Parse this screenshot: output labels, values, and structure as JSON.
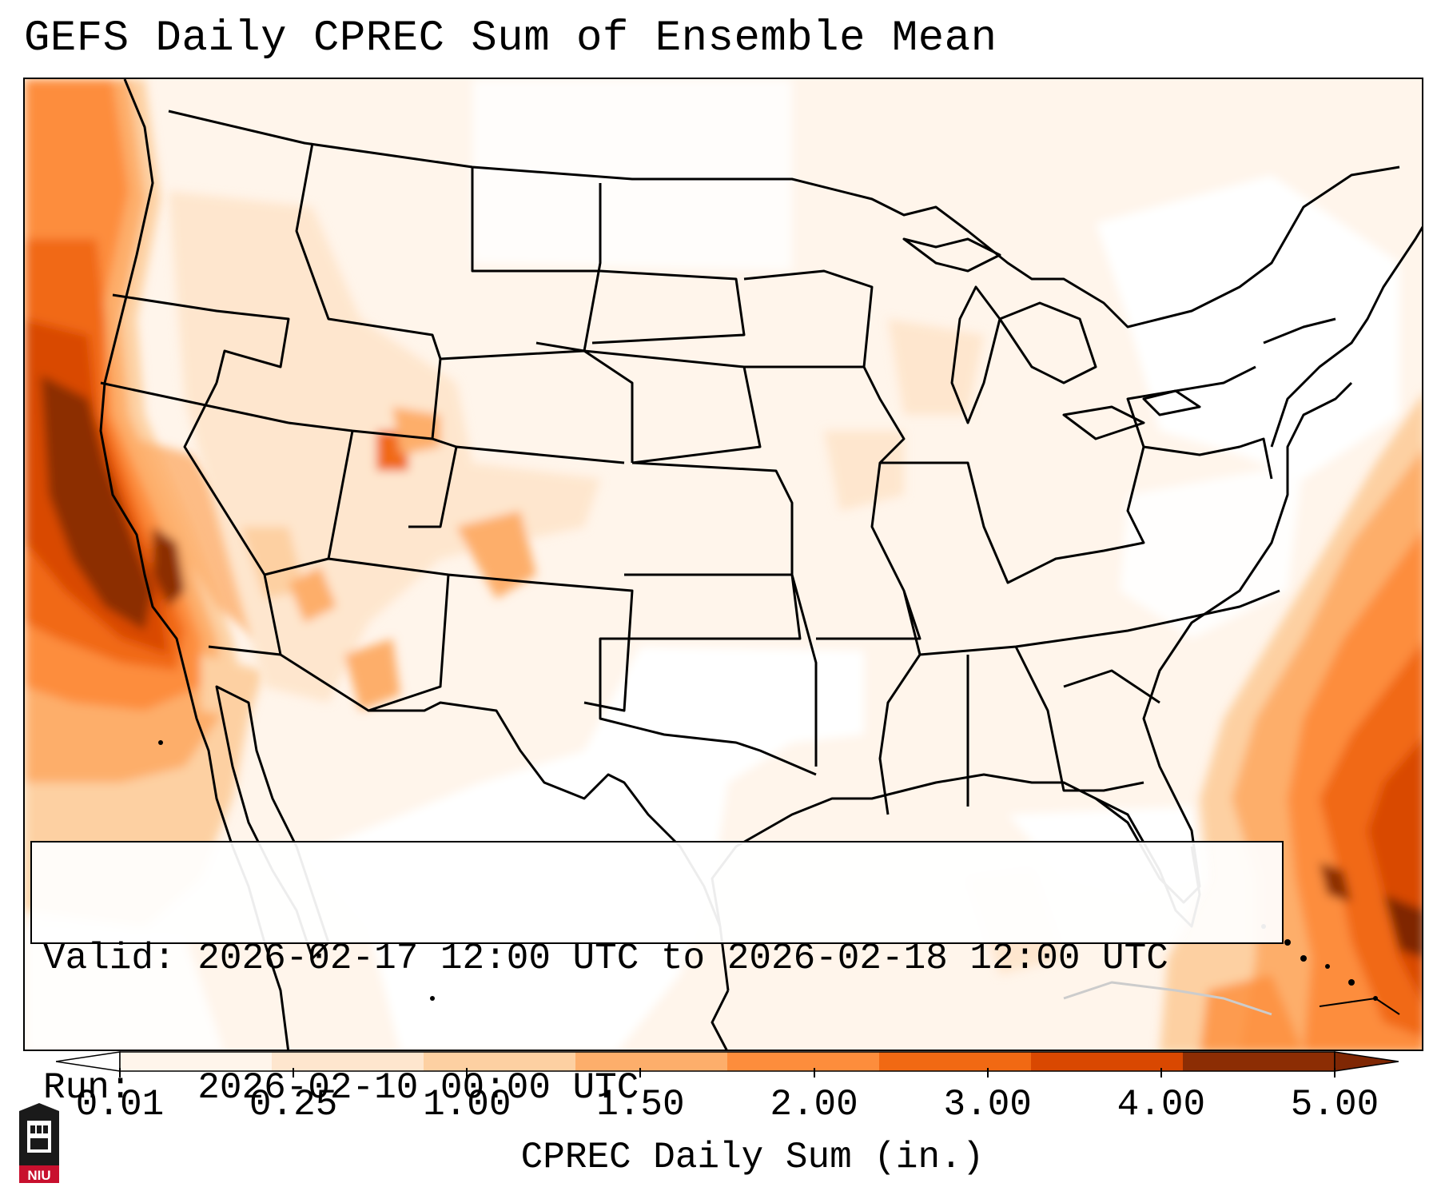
{
  "title": "GEFS Daily CPREC Sum of Ensemble Mean",
  "info": {
    "valid_label": "Valid:",
    "valid_value": "2026-02-17 12:00 UTC to 2026-02-18 12:00 UTC",
    "run_label": "Run:",
    "run_value": "2026-02-10 00:00 UTC"
  },
  "colorbar": {
    "title": "CPREC Daily Sum (in.)",
    "ticks": [
      "0.01",
      "0.25",
      "1.00",
      "1.50",
      "2.00",
      "3.00",
      "4.00",
      "5.00"
    ],
    "colors": [
      "#fff5eb",
      "#fee6ce",
      "#fdd0a2",
      "#fdae6b",
      "#fd8d3c",
      "#f16913",
      "#d94801",
      "#8c2d04"
    ],
    "under_color": "#ffffff",
    "over_color": "#7f2704"
  },
  "logo": {
    "text": "NIU",
    "color": "#c8102e"
  }
}
